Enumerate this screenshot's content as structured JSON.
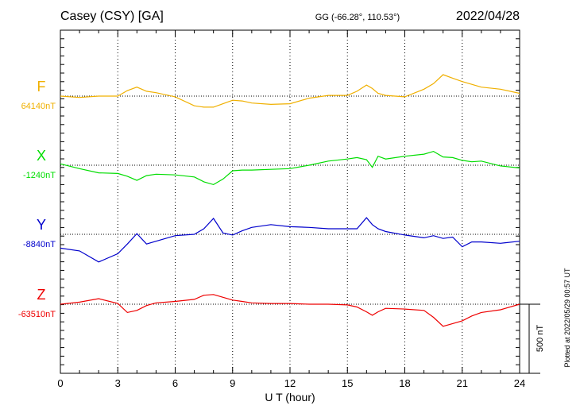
{
  "header": {
    "station": "Casey (CSY)  [GA]",
    "coords": "GG (-66.28°, 110.53°)",
    "date": "2022/04/28"
  },
  "footer_note": "Plotted at 2022/05/29 00:57 UT",
  "scale_label": "500 nT",
  "colors": {
    "F": "#f0b000",
    "X": "#00dd00",
    "Y": "#0000cc",
    "Z": "#ee0000"
  },
  "chart_data": {
    "type": "line",
    "title": "Casey (CSY)  [GA]",
    "xlabel": "U T (hour)",
    "ylabel": "",
    "xlim": [
      0,
      24
    ],
    "x_ticks": [
      "0",
      "3",
      "6",
      "9",
      "12",
      "15",
      "18",
      "21",
      "24"
    ],
    "grid": true,
    "scale_bar_nT": 500,
    "x": [
      0,
      1,
      2,
      3,
      3.5,
      4,
      4.5,
      5,
      6,
      7,
      7.5,
      8,
      8.5,
      9,
      9.5,
      10,
      11,
      12,
      13,
      14,
      15,
      15.5,
      16,
      16.3,
      16.6,
      17,
      18,
      19,
      19.5,
      20,
      20.5,
      21,
      21.5,
      22,
      23,
      24
    ],
    "series": [
      {
        "name": "F",
        "baseline_label": "64140nT",
        "baseline_nT": 64140,
        "values": [
          64140,
          64130,
          64140,
          64140,
          64180,
          64205,
          64175,
          64165,
          64135,
          64070,
          64060,
          64060,
          64085,
          64110,
          64105,
          64090,
          64080,
          64085,
          64125,
          64145,
          64145,
          64175,
          64220,
          64195,
          64160,
          64145,
          64135,
          64190,
          64230,
          64295,
          64270,
          64245,
          64225,
          64205,
          64190,
          64160
        ]
      },
      {
        "name": "X",
        "baseline_label": "-1240nT",
        "baseline_nT": -1240,
        "values": [
          -1230,
          -1265,
          -1295,
          -1300,
          -1320,
          -1350,
          -1315,
          -1305,
          -1310,
          -1325,
          -1360,
          -1380,
          -1340,
          -1280,
          -1275,
          -1275,
          -1270,
          -1265,
          -1240,
          -1210,
          -1195,
          -1185,
          -1200,
          -1255,
          -1175,
          -1195,
          -1175,
          -1160,
          -1140,
          -1180,
          -1185,
          -1205,
          -1215,
          -1210,
          -1245,
          -1260
        ]
      },
      {
        "name": "Y",
        "baseline_label": "-8840nT",
        "baseline_nT": -8840,
        "values": [
          -8940,
          -8960,
          -9040,
          -8980,
          -8910,
          -8835,
          -8910,
          -8890,
          -8850,
          -8840,
          -8800,
          -8725,
          -8830,
          -8845,
          -8815,
          -8790,
          -8770,
          -8785,
          -8790,
          -8800,
          -8800,
          -8800,
          -8720,
          -8770,
          -8800,
          -8820,
          -8845,
          -8865,
          -8850,
          -8870,
          -8860,
          -8930,
          -8895,
          -8895,
          -8905,
          -8890
        ]
      },
      {
        "name": "Z",
        "baseline_label": "-63510nT",
        "baseline_nT": -63510,
        "values": [
          -63510,
          -63495,
          -63470,
          -63505,
          -63570,
          -63555,
          -63520,
          -63500,
          -63490,
          -63475,
          -63445,
          -63440,
          -63460,
          -63480,
          -63490,
          -63500,
          -63505,
          -63505,
          -63510,
          -63510,
          -63515,
          -63530,
          -63565,
          -63590,
          -63565,
          -63540,
          -63545,
          -63555,
          -63605,
          -63670,
          -63650,
          -63630,
          -63595,
          -63570,
          -63550,
          -63510
        ]
      }
    ]
  }
}
